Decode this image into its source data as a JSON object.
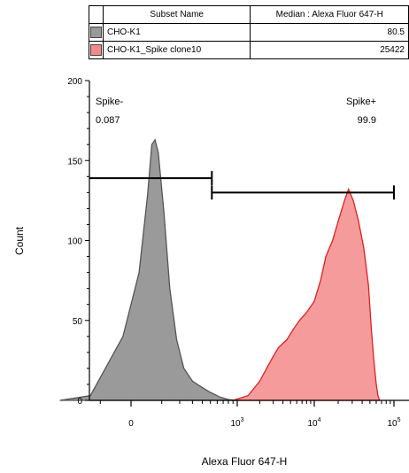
{
  "legend": {
    "header": {
      "name": "Subset Name",
      "value": "Median : Alexa Fluor 647-H"
    },
    "rows": [
      {
        "swatch_color": "#9a9a9a",
        "name": "CHO-K1",
        "value": "80.5"
      },
      {
        "swatch_color": "#f58a8a",
        "name": "CHO-K1_Spike clone10",
        "value": "25422"
      }
    ]
  },
  "chart_data": {
    "type": "area",
    "title": "",
    "xlabel": "Alexa Fluor 647-H",
    "ylabel": "Count",
    "ylim": [
      0,
      200
    ],
    "y_ticks": [
      0,
      50,
      100,
      150,
      200
    ],
    "x_scale": "biexponential",
    "x_ticks": [
      {
        "value": 0,
        "label": "0"
      },
      {
        "value": 1000,
        "label": "10^3"
      },
      {
        "value": 10000,
        "label": "10^4"
      },
      {
        "value": 100000,
        "label": "10^5"
      }
    ],
    "series": [
      {
        "name": "CHO-K1",
        "color": "#9a9a9a",
        "stroke": "#555555",
        "points": [
          [
            -400,
            0
          ],
          [
            -150,
            3
          ],
          [
            -20,
            40
          ],
          [
            20,
            80
          ],
          [
            45,
            128
          ],
          [
            60,
            160
          ],
          [
            72,
            163
          ],
          [
            85,
            155
          ],
          [
            110,
            118
          ],
          [
            140,
            70
          ],
          [
            180,
            38
          ],
          [
            230,
            20
          ],
          [
            300,
            12
          ],
          [
            400,
            8
          ],
          [
            500,
            5
          ],
          [
            650,
            2
          ],
          [
            800,
            0.5
          ],
          [
            1000,
            0
          ]
        ]
      },
      {
        "name": "CHO-K1_Spike clone10",
        "color": "#f58a8a",
        "stroke": "#e02020",
        "points": [
          [
            900,
            0
          ],
          [
            1400,
            3
          ],
          [
            2000,
            12
          ],
          [
            2800,
            25
          ],
          [
            3500,
            33
          ],
          [
            4500,
            38
          ],
          [
            5500,
            45
          ],
          [
            6500,
            50
          ],
          [
            8000,
            55
          ],
          [
            10000,
            62
          ],
          [
            12000,
            75
          ],
          [
            14000,
            90
          ],
          [
            17000,
            100
          ],
          [
            20000,
            112
          ],
          [
            24000,
            125
          ],
          [
            27000,
            132
          ],
          [
            31000,
            125
          ],
          [
            36000,
            112
          ],
          [
            42000,
            95
          ],
          [
            48000,
            72
          ],
          [
            52000,
            45
          ],
          [
            56000,
            25
          ],
          [
            60000,
            10
          ],
          [
            63000,
            3
          ],
          [
            66000,
            0
          ]
        ]
      }
    ],
    "gates": [
      {
        "name": "Spike-",
        "value": "0.087",
        "x_range": [
          -600,
          520
        ],
        "y": 139
      },
      {
        "name": "Spike+",
        "value": "99.9",
        "x_range": [
          520,
          100000
        ],
        "y": 130
      }
    ]
  }
}
